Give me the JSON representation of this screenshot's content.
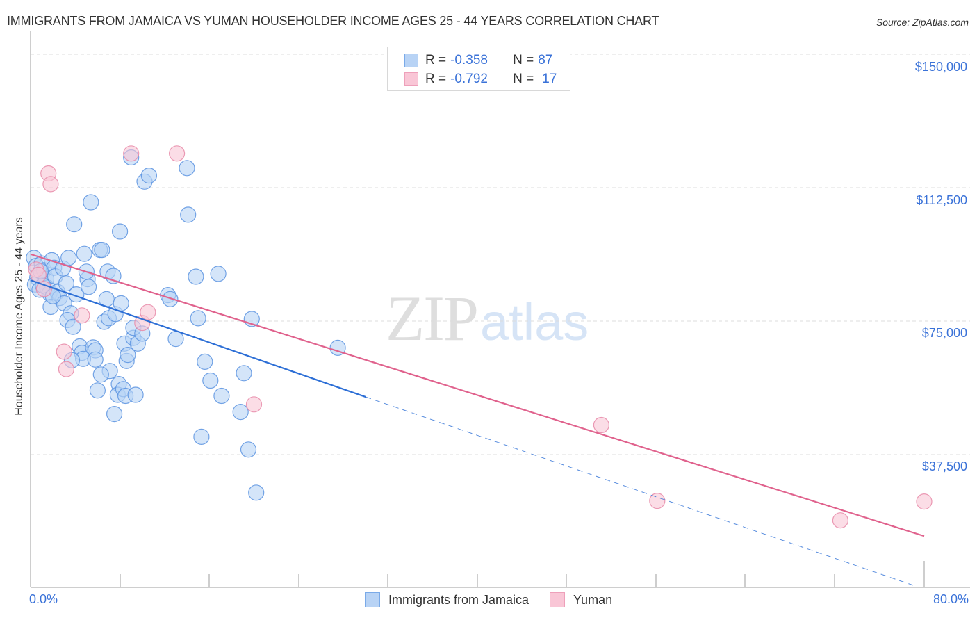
{
  "header": {
    "title": "IMMIGRANTS FROM JAMAICA VS YUMAN HOUSEHOLDER INCOME AGES 25 - 44 YEARS CORRELATION CHART",
    "source": "Source: ZipAtlas.com"
  },
  "axes": {
    "ylabel": "Householder Income Ages 25 - 44 years",
    "yticks": [
      "$150,000",
      "$112,500",
      "$75,000",
      "$37,500"
    ],
    "xtick_left": "0.0%",
    "xtick_right": "80.0%"
  },
  "stats": {
    "rows": [
      {
        "r_label": "R =",
        "r_value": "-0.358",
        "n_label": "N =",
        "n_value": "87"
      },
      {
        "r_label": "R =",
        "r_value": "-0.792",
        "n_label": "N =",
        "n_value": "17"
      }
    ]
  },
  "legend": {
    "items": [
      {
        "label": "Immigrants from Jamaica",
        "color": "#b8d3f5"
      },
      {
        "label": "Yuman",
        "color": "#f9c6d6"
      }
    ]
  },
  "watermark": {
    "zip": "ZIP",
    "atlas": "atlas"
  },
  "colors": {
    "blue_fill": "#b8d3f5",
    "blue_stroke": "#5b93e0",
    "blue_line": "#2d6fd6",
    "pink_fill": "#f9c6d6",
    "pink_stroke": "#e88aa8",
    "pink_line": "#e0628d",
    "tick_label": "#3a72d8"
  },
  "chart_data": {
    "type": "scatter",
    "title": "IMMIGRANTS FROM JAMAICA VS YUMAN HOUSEHOLDER INCOME AGES 25 - 44 YEARS CORRELATION CHART",
    "xlabel": "",
    "ylabel": "Householder Income Ages 25 - 44 years",
    "xlim": [
      0,
      80
    ],
    "ylim": [
      0,
      153000
    ],
    "x_unit": "%",
    "yticks": [
      37500,
      75000,
      112500,
      150000
    ],
    "xticks_labeled": [
      0,
      80
    ],
    "grid": "horizontal dashed",
    "legend_position": "bottom",
    "series": [
      {
        "name": "Immigrants from Jamaica",
        "R": -0.358,
        "N": 87,
        "trend": {
          "x0": 0,
          "y0": 86500,
          "x1": 30,
          "y1": 53700,
          "dashed_to": {
            "x": 79,
            "y": 800
          }
        },
        "points": [
          [
            0.3,
            92800
          ],
          [
            0.5,
            90500
          ],
          [
            0.6,
            87200
          ],
          [
            0.4,
            85300
          ],
          [
            0.8,
            83800
          ],
          [
            1.0,
            91200
          ],
          [
            1.2,
            89300
          ],
          [
            1.4,
            86900
          ],
          [
            1.5,
            84400
          ],
          [
            1.7,
            82800
          ],
          [
            1.9,
            92100
          ],
          [
            2.1,
            90000
          ],
          [
            2.2,
            87600
          ],
          [
            2.4,
            83200
          ],
          [
            2.6,
            81500
          ],
          [
            1.8,
            79000
          ],
          [
            2.9,
            89800
          ],
          [
            3.2,
            85600
          ],
          [
            3.4,
            92800
          ],
          [
            3.0,
            80000
          ],
          [
            3.6,
            77200
          ],
          [
            3.3,
            75300
          ],
          [
            3.8,
            73400
          ],
          [
            4.1,
            82500
          ],
          [
            4.4,
            67900
          ],
          [
            4.6,
            66100
          ],
          [
            4.7,
            64400
          ],
          [
            5.1,
            86800
          ],
          [
            5.2,
            84600
          ],
          [
            5.0,
            88900
          ],
          [
            4.8,
            93900
          ],
          [
            3.9,
            102200
          ],
          [
            5.4,
            108400
          ],
          [
            5.6,
            67600
          ],
          [
            5.8,
            66800
          ],
          [
            6.0,
            55500
          ],
          [
            5.8,
            64200
          ],
          [
            6.2,
            95000
          ],
          [
            6.4,
            95000
          ],
          [
            6.6,
            74800
          ],
          [
            6.8,
            81200
          ],
          [
            6.9,
            88900
          ],
          [
            7.0,
            75800
          ],
          [
            7.1,
            61000
          ],
          [
            7.4,
            87700
          ],
          [
            7.6,
            77000
          ],
          [
            7.5,
            48900
          ],
          [
            7.9,
            57300
          ],
          [
            7.8,
            54300
          ],
          [
            8.0,
            100200
          ],
          [
            8.1,
            80000
          ],
          [
            8.3,
            55900
          ],
          [
            8.4,
            68700
          ],
          [
            8.5,
            54000
          ],
          [
            8.6,
            63800
          ],
          [
            8.7,
            65500
          ],
          [
            9.0,
            121000
          ],
          [
            9.2,
            70300
          ],
          [
            9.4,
            54300
          ],
          [
            9.6,
            68700
          ],
          [
            9.2,
            73100
          ],
          [
            10.2,
            114200
          ],
          [
            10.6,
            115900
          ],
          [
            12.3,
            82300
          ],
          [
            12.5,
            81200
          ],
          [
            13.0,
            70000
          ],
          [
            14.0,
            118000
          ],
          [
            14.1,
            104900
          ],
          [
            14.8,
            87500
          ],
          [
            15.0,
            75800
          ],
          [
            15.3,
            42500
          ],
          [
            15.6,
            63600
          ],
          [
            16.1,
            58300
          ],
          [
            16.8,
            88300
          ],
          [
            17.1,
            54000
          ],
          [
            18.8,
            49500
          ],
          [
            19.1,
            60400
          ],
          [
            19.5,
            38900
          ],
          [
            19.8,
            75600
          ],
          [
            20.2,
            26800
          ],
          [
            27.5,
            67500
          ],
          [
            1.1,
            85000
          ],
          [
            2.0,
            82000
          ],
          [
            3.7,
            64000
          ],
          [
            6.3,
            60000
          ],
          [
            10.0,
            71500
          ],
          [
            0.9,
            89000
          ]
        ]
      },
      {
        "name": "Yuman",
        "R": -0.792,
        "N": 17,
        "trend": {
          "x0": 0,
          "y0": 93800,
          "x1": 80,
          "y1": 14600
        },
        "points": [
          [
            0.5,
            89500
          ],
          [
            0.7,
            88000
          ],
          [
            1.2,
            84000
          ],
          [
            1.6,
            116500
          ],
          [
            1.8,
            113500
          ],
          [
            3.0,
            66400
          ],
          [
            3.2,
            61500
          ],
          [
            4.6,
            76600
          ],
          [
            9.0,
            122100
          ],
          [
            10.0,
            74500
          ],
          [
            10.5,
            77500
          ],
          [
            13.1,
            122100
          ],
          [
            20.0,
            51600
          ],
          [
            51.1,
            45800
          ],
          [
            56.1,
            24500
          ],
          [
            72.5,
            19000
          ],
          [
            80.0,
            24300
          ]
        ]
      }
    ]
  }
}
